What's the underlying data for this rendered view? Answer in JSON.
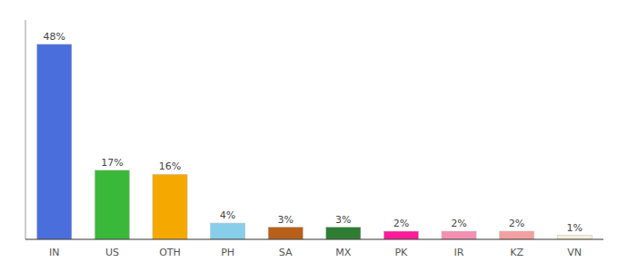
{
  "chart_data": {
    "type": "bar",
    "categories": [
      "IN",
      "US",
      "OTH",
      "PH",
      "SA",
      "MX",
      "PK",
      "IR",
      "KZ",
      "VN"
    ],
    "values": [
      48,
      17,
      16,
      4,
      3,
      3,
      2,
      2,
      2,
      1
    ],
    "value_labels": [
      "48%",
      "17%",
      "16%",
      "4%",
      "3%",
      "3%",
      "2%",
      "2%",
      "2%",
      "1%"
    ],
    "colors": [
      "#4a6fdc",
      "#3ab83a",
      "#f5a800",
      "#87ceeb",
      "#b8601a",
      "#2e7d32",
      "#ff1a9a",
      "#f48fb1",
      "#f4a0a0",
      "#f5f0d8"
    ],
    "ylim": [
      0,
      54
    ],
    "yticks": [],
    "data_labels": true,
    "tick_labels": "x",
    "grid": false
  }
}
